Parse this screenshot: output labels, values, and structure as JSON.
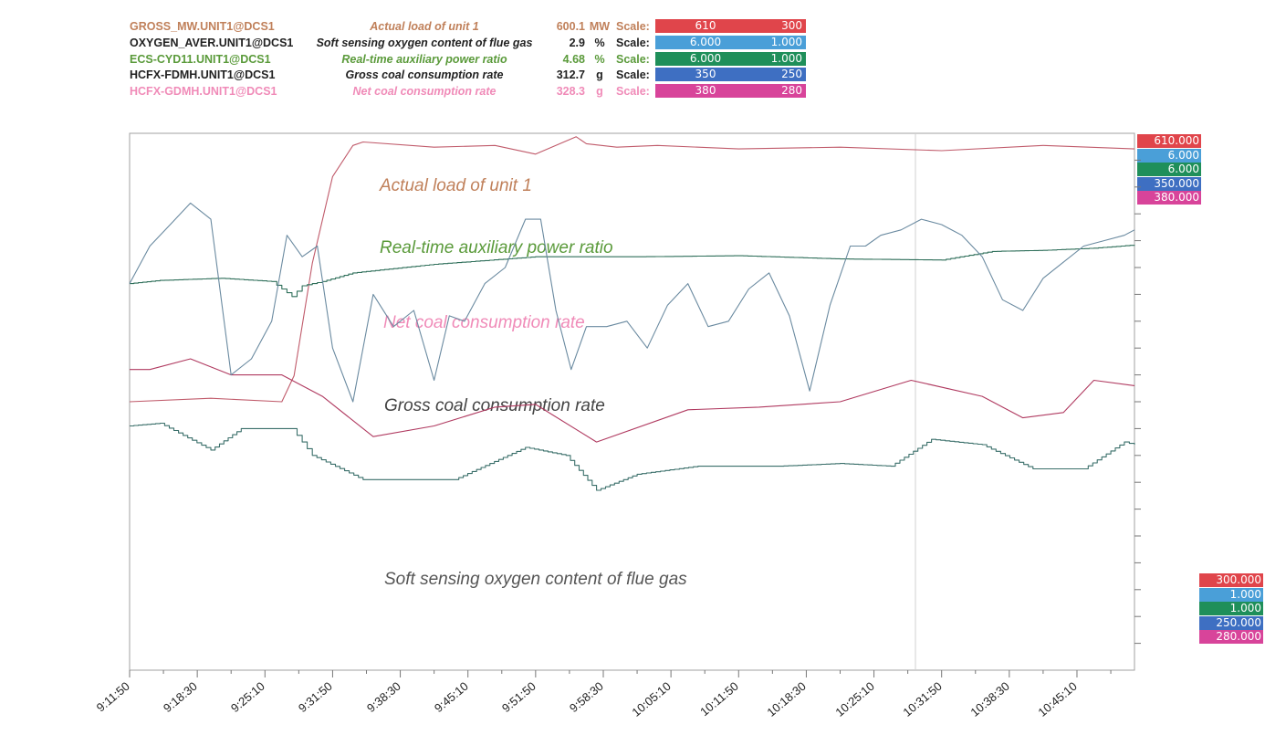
{
  "legend": [
    {
      "tag": "GROSS_MW.UNIT1@DCS1",
      "desc": "Actual load of unit 1",
      "value": "600.1",
      "unit": "MW",
      "scale_label": "Scale:",
      "scale_min": "610",
      "scale_max": "300",
      "text_color": "#c0805a",
      "box_color": "#e0454b"
    },
    {
      "tag": "OXYGEN_AVER.UNIT1@DCS1",
      "desc": "Soft sensing oxygen content of flue gas",
      "value": "2.9",
      "unit": "%",
      "scale_label": "Scale:",
      "scale_min": "6.000",
      "scale_max": "1.000",
      "text_color": "#222222",
      "box_color": "#4a9fd8"
    },
    {
      "tag": "ECS-CYD11.UNIT1@DCS1",
      "desc": "Real-time auxiliary power ratio",
      "value": "4.68",
      "unit": "%",
      "scale_label": "Scale:",
      "scale_min": "6.000",
      "scale_max": "1.000",
      "text_color": "#5a9a3a",
      "box_color": "#1f8f5a"
    },
    {
      "tag": "HCFX-FDMH.UNIT1@DCS1",
      "desc": "Gross coal consumption rate",
      "value": "312.7",
      "unit": "g",
      "scale_label": "Scale:",
      "scale_min": "350",
      "scale_max": "250",
      "text_color": "#222222",
      "box_color": "#3e6fc2"
    },
    {
      "tag": "HCFX-GDMH.UNIT1@DCS1",
      "desc": "Net coal consumption rate",
      "value": "328.3",
      "unit": "g",
      "scale_label": "Scale:",
      "scale_min": "380",
      "scale_max": "280",
      "text_color": "#f08bb8",
      "box_color": "#d8449a"
    }
  ],
  "axis_top": [
    "610.000",
    "6.000",
    "6.000",
    "350.000",
    "380.000"
  ],
  "axis_bottom": [
    "300.000",
    "1.000",
    "1.000",
    "250.000",
    "280.000"
  ],
  "chart_data": {
    "type": "line",
    "x_ticks": [
      "9:11:50",
      "9:18:30",
      "9:25:10",
      "9:31:50",
      "9:38:30",
      "9:45:10",
      "9:51:50",
      "9:58:30",
      "10:05:10",
      "10:11:50",
      "10:18:30",
      "10:25:10",
      "10:31:50",
      "10:38:30",
      "10:45:10"
    ],
    "x_range": [
      "9:11:50",
      "10:50:50"
    ],
    "annotations": [
      "Actual load of unit 1",
      "Real-time auxiliary power ratio",
      "Net coal consumption rate",
      "Gross coal consumption rate",
      "Soft sensing oxygen content of flue gas"
    ],
    "series": [
      {
        "name": "Actual load of unit 1",
        "color": "#c05a6a",
        "ymin": 300,
        "ymax": 610,
        "stepped": false,
        "x": [
          0,
          8,
          15,
          16.2,
          18,
          20,
          22,
          23,
          30,
          36,
          40,
          44,
          45,
          48,
          52,
          60,
          70,
          80,
          90,
          99
        ],
        "y": [
          455,
          457,
          455,
          470,
          535,
          585,
          603,
          605,
          602,
          603,
          598,
          608,
          604,
          602,
          603,
          601,
          602,
          600,
          603,
          601
        ]
      },
      {
        "name": "Real-time auxiliary power ratio",
        "color": "#2f6f5a",
        "ymin": 1.0,
        "ymax": 6.0,
        "stepped": true,
        "x": [
          0,
          3,
          9,
          14,
          16,
          17,
          19,
          22,
          30,
          40,
          50,
          60,
          70,
          80,
          85,
          90,
          95,
          99
        ],
        "y": [
          4.6,
          4.63,
          4.65,
          4.62,
          4.48,
          4.58,
          4.62,
          4.7,
          4.78,
          4.85,
          4.85,
          4.86,
          4.83,
          4.82,
          4.9,
          4.91,
          4.93,
          4.96
        ]
      },
      {
        "name": "Net coal consumption rate",
        "color": "#3a6f6a",
        "ymin": 280,
        "ymax": 380,
        "stepped": true,
        "x": [
          0,
          3,
          8,
          11,
          16,
          18,
          23,
          32,
          39,
          43,
          46,
          50,
          56,
          64,
          70,
          75,
          79,
          84,
          89,
          94,
          98,
          99
        ],
        "y": [
          325.5,
          326,
          321,
          325,
          325,
          320,
          315.5,
          315.5,
          321.5,
          320,
          313.5,
          316.5,
          318,
          318,
          318.5,
          318,
          323,
          322,
          317.5,
          317.5,
          322.5,
          322
        ]
      },
      {
        "name": "Gross coal consumption rate",
        "color": "#b03a60",
        "ymin": 250,
        "ymax": 350,
        "stepped": false,
        "x": [
          0,
          2,
          6,
          10,
          15,
          19,
          24,
          30,
          36,
          40,
          46,
          55,
          62,
          70,
          77,
          84,
          88,
          92,
          95,
          99
        ],
        "y": [
          306,
          306,
          308,
          305,
          305,
          301,
          293.5,
          295.5,
          299,
          299.5,
          292.5,
          298.5,
          299,
          300,
          304,
          301,
          297,
          298,
          304,
          303
        ]
      },
      {
        "name": "Soft sensing oxygen content of flue gas",
        "color": "#6a8aa0",
        "ymin": 1.0,
        "ymax": 6.0,
        "stepped": false,
        "x": [
          0,
          2,
          4,
          6,
          8,
          10,
          12,
          14,
          15.5,
          17,
          18.5,
          20,
          22,
          24,
          26,
          28,
          30,
          31.5,
          33,
          35,
          37,
          39,
          40.5,
          42,
          43.5,
          45,
          47,
          49,
          51,
          53,
          55,
          57,
          59,
          61,
          63,
          65,
          67,
          69,
          71,
          72.5,
          74,
          76,
          78,
          80,
          82,
          84,
          86,
          88,
          90,
          92,
          94,
          96,
          98,
          99
        ],
        "y": [
          4.6,
          4.95,
          5.15,
          5.35,
          5.2,
          3.75,
          3.9,
          4.25,
          5.05,
          4.85,
          4.95,
          4.0,
          3.5,
          4.5,
          4.2,
          4.35,
          3.7,
          4.3,
          4.25,
          4.6,
          4.75,
          5.2,
          5.2,
          4.35,
          3.8,
          4.2,
          4.2,
          4.25,
          4.0,
          4.4,
          4.6,
          4.2,
          4.25,
          4.55,
          4.7,
          4.3,
          3.6,
          4.4,
          4.95,
          4.95,
          5.05,
          5.1,
          5.2,
          5.15,
          5.05,
          4.85,
          4.45,
          4.35,
          4.65,
          4.8,
          4.95,
          5.0,
          5.05,
          5.1
        ]
      }
    ]
  }
}
